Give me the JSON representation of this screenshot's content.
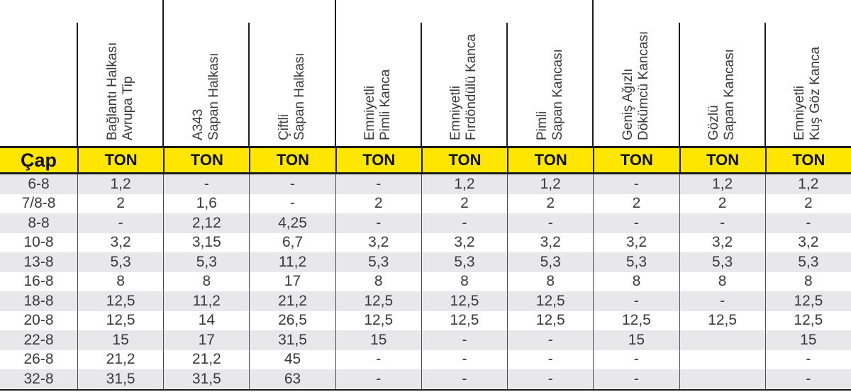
{
  "colors": {
    "band_yellow": "#ffe600",
    "stripe_gray": "#e8e8ea",
    "line_dark": "#1d1d1b",
    "text_dark": "#3a3a3c"
  },
  "chart_data": {
    "type": "table",
    "title": "",
    "cap_label": "Çap",
    "ton_label": "TON",
    "columns": [
      {
        "line1": "Bağlantı Halkası",
        "line2": "Avrupa Tip",
        "divider_full": false
      },
      {
        "line1": "A343",
        "line2": "Sapan Halkası",
        "divider_full": true
      },
      {
        "line1": "Çiftli",
        "line2": "Sapan Halkası",
        "divider_full": false
      },
      {
        "line1": "Emniyetli",
        "line2": "Pimli Kanca",
        "divider_full": true
      },
      {
        "line1": "Emniyetli",
        "line2": "Fırdöndülü Kanca",
        "divider_full": false
      },
      {
        "line1": "Pimli",
        "line2": "Sapan Kancası",
        "divider_full": false
      },
      {
        "line1": "Geniş Ağızlı",
        "line2": "Dökümcü Kancası",
        "divider_full": true
      },
      {
        "line1": "Gözlü",
        "line2": "Sapan Kancası",
        "divider_full": false
      },
      {
        "line1": "Emniyetli",
        "line2": "Kuş Göz Kanca",
        "divider_full": false
      }
    ],
    "rows": [
      {
        "cap": "6-8",
        "values": [
          "1,2",
          "-",
          "-",
          "-",
          "1,2",
          "1,2",
          "-",
          "1,2",
          "1,2"
        ]
      },
      {
        "cap": "7/8-8",
        "values": [
          "2",
          "1,6",
          "-",
          "2",
          "2",
          "2",
          "2",
          "2",
          "2"
        ]
      },
      {
        "cap": "8-8",
        "values": [
          "-",
          "2,12",
          "4,25",
          "-",
          "-",
          "-",
          "-",
          "-",
          "-"
        ]
      },
      {
        "cap": "10-8",
        "values": [
          "3,2",
          "3,15",
          "6,7",
          "3,2",
          "3,2",
          "3,2",
          "3,2",
          "3,2",
          "3,2"
        ]
      },
      {
        "cap": "13-8",
        "values": [
          "5,3",
          "5,3",
          "11,2",
          "5,3",
          "5,3",
          "5,3",
          "5,3",
          "5,3",
          "5,3"
        ]
      },
      {
        "cap": "16-8",
        "values": [
          "8",
          "8",
          "17",
          "8",
          "8",
          "8",
          "8",
          "8",
          "8"
        ]
      },
      {
        "cap": "18-8",
        "values": [
          "12,5",
          "11,2",
          "21,2",
          "12,5",
          "12,5",
          "12,5",
          "-",
          "-",
          "12,5"
        ]
      },
      {
        "cap": "20-8",
        "values": [
          "12,5",
          "14",
          "26,5",
          "12,5",
          "12,5",
          "12,5",
          "12,5",
          "12,5",
          "12,5"
        ]
      },
      {
        "cap": "22-8",
        "values": [
          "15",
          "17",
          "31,5",
          "15",
          "-",
          "-",
          "15",
          "",
          "15"
        ]
      },
      {
        "cap": "26-8",
        "values": [
          "21,2",
          "21,2",
          "45",
          "-",
          "-",
          "-",
          "-",
          "",
          "-"
        ]
      },
      {
        "cap": "32-8",
        "values": [
          "31,5",
          "31,5",
          "63",
          "-",
          "-",
          "-",
          "-",
          "",
          "-"
        ]
      }
    ]
  }
}
